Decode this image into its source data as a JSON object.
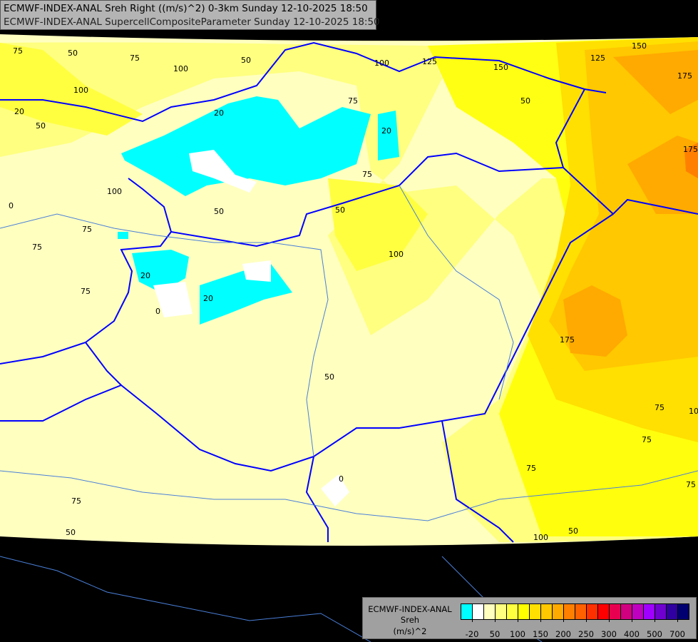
{
  "header": {
    "line1": "ECMWF-INDEX-ANAL Sreh Right ((m/s)^2) 0-3km Sunday 12-10-2025 18:50",
    "line2": "ECMWF-INDEX-ANAL SupercellCompositeParameter Sunday 12-10-2025 18:50"
  },
  "legend": {
    "model": "ECMWF-INDEX-ANAL",
    "parameter": "Sreh",
    "unit": "(m/s)^2",
    "colors": [
      "#00ffff",
      "#ffffff",
      "#ffffc0",
      "#ffff80",
      "#ffff40",
      "#ffff00",
      "#ffe000",
      "#ffc800",
      "#ffaa00",
      "#ff8000",
      "#ff6000",
      "#ff3000",
      "#ff0000",
      "#e80050",
      "#d00080",
      "#c000c0",
      "#a000ff",
      "#7000d0",
      "#3000a0",
      "#000070"
    ],
    "ticks": [
      "-20",
      "50",
      "100",
      "150",
      "200",
      "250",
      "300",
      "400",
      "500",
      "700"
    ]
  },
  "map": {
    "border_color": "#0000ff",
    "river_color": "#4a7fd8",
    "contour_labels": [
      "75",
      "50",
      "75",
      "100",
      "50",
      "100",
      "50",
      "20",
      "75",
      "20",
      "125",
      "150",
      "125",
      "150",
      "175",
      "50",
      "175",
      "75",
      "100",
      "50",
      "100",
      "75",
      "0",
      "75",
      "75",
      "20",
      "0",
      "20",
      "100",
      "75",
      "50",
      "175",
      "75",
      "100",
      "75",
      "0",
      "75",
      "50",
      "100",
      "50",
      "75",
      "50",
      "20"
    ]
  }
}
